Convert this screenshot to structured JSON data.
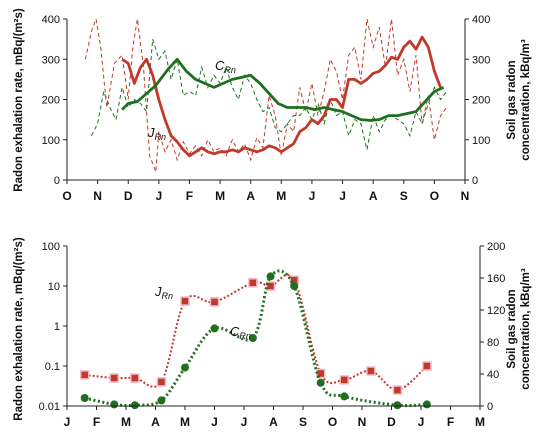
{
  "chart_data": [
    {
      "type": "line",
      "ylabel_left": "Radon exhalation rate, mBq/(m²s)",
      "ylabel_right": [
        "Soil gas radon",
        "concentration, kBq/m³"
      ],
      "ylim_left": [
        0,
        400
      ],
      "ylim_right": [
        0,
        400
      ],
      "yticks_left": [
        "0",
        "100",
        "200",
        "300",
        "400"
      ],
      "yticks_right": [
        "0",
        "100",
        "200",
        "300",
        "400"
      ],
      "months": [
        "O",
        "N",
        "D",
        "J",
        "F",
        "M",
        "A",
        "M",
        "J",
        "J",
        "A",
        "S",
        "O",
        "N"
      ],
      "labels": {
        "j_main": "J",
        "j_sub": "Rn",
        "c_main": "C",
        "c_sub": "Rn"
      },
      "colors": {
        "j": "#c0392b",
        "c": "#1f6f1f"
      },
      "series": [
        {
          "key": "j_raw",
          "style": "dashed",
          "color": "#c0392b",
          "x": [
            0.6,
            0.8,
            0.95,
            1.1,
            1.3,
            1.55,
            1.8,
            2.0,
            2.15,
            2.3,
            2.5,
            2.7,
            2.9,
            3.0,
            3.2,
            3.4,
            3.6,
            3.8,
            4.0,
            4.2,
            4.4,
            4.6,
            4.8,
            5.0,
            5.2,
            5.4,
            5.6,
            5.8,
            6.0,
            6.2,
            6.4,
            6.6,
            6.8,
            7.0,
            7.2,
            7.4,
            7.6,
            7.8,
            8.0,
            8.2,
            8.4,
            8.6,
            8.8,
            9.0,
            9.2,
            9.4,
            9.6,
            9.8,
            10.0,
            10.2,
            10.4,
            10.6,
            10.8,
            11.0,
            11.2,
            11.4,
            11.6,
            11.8,
            12.0,
            12.2,
            12.4
          ],
          "y": [
            300,
            370,
            400,
            330,
            180,
            290,
            310,
            200,
            330,
            400,
            280,
            60,
            20,
            120,
            70,
            100,
            50,
            95,
            65,
            85,
            60,
            100,
            70,
            80,
            60,
            100,
            70,
            90,
            50,
            105,
            80,
            210,
            160,
            60,
            140,
            120,
            230,
            170,
            240,
            160,
            220,
            300,
            270,
            200,
            310,
            330,
            250,
            400,
            330,
            380,
            280,
            400,
            260,
            300,
            220,
            310,
            140,
            210,
            100,
            160,
            180
          ]
        },
        {
          "key": "c_raw",
          "style": "dashed",
          "color": "#1f6f1f",
          "x": [
            0.8,
            1.0,
            1.2,
            1.4,
            1.6,
            1.8,
            2.0,
            2.2,
            2.4,
            2.6,
            2.8,
            3.0,
            3.2,
            3.4,
            3.6,
            3.8,
            4.0,
            4.2,
            4.4,
            4.6,
            4.8,
            5.0,
            5.2,
            5.4,
            5.6,
            5.8,
            6.0,
            6.2,
            6.4,
            6.6,
            6.8,
            7.0,
            7.2,
            7.4,
            7.6,
            7.8,
            8.0,
            8.2,
            8.4,
            8.6,
            8.8,
            9.0,
            9.2,
            9.4,
            9.6,
            9.8,
            10.0,
            10.2,
            10.4,
            10.6,
            10.8,
            11.0,
            11.2,
            11.4,
            11.6,
            11.8,
            12.0,
            12.2,
            12.4
          ],
          "y": [
            110,
            140,
            220,
            180,
            150,
            230,
            180,
            200,
            190,
            170,
            350,
            300,
            320,
            250,
            300,
            210,
            220,
            210,
            280,
            230,
            260,
            240,
            280,
            230,
            200,
            260,
            240,
            200,
            170,
            180,
            130,
            120,
            140,
            160,
            160,
            180,
            150,
            190,
            140,
            200,
            160,
            170,
            110,
            150,
            140,
            75,
            160,
            120,
            150,
            160,
            150,
            140,
            110,
            170,
            140,
            190,
            230,
            200,
            220
          ]
        },
        {
          "key": "j_avg",
          "style": "solid",
          "color": "#c0392b",
          "x": [
            1.8,
            2.0,
            2.2,
            2.4,
            2.6,
            2.8,
            3.0,
            3.2,
            3.4,
            3.6,
            3.8,
            4.0,
            4.2,
            4.4,
            4.6,
            4.8,
            5.0,
            5.2,
            5.4,
            5.6,
            5.8,
            6.0,
            6.2,
            6.4,
            6.6,
            6.8,
            7.0,
            7.2,
            7.4,
            7.6,
            7.8,
            8.0,
            8.2,
            8.4,
            8.6,
            8.8,
            9.0,
            9.2,
            9.4,
            9.6,
            9.8,
            10.0,
            10.2,
            10.4,
            10.6,
            10.8,
            11.0,
            11.2,
            11.4,
            11.6,
            11.8,
            12.0,
            12.2
          ],
          "y": [
            300,
            290,
            240,
            280,
            300,
            260,
            200,
            150,
            110,
            95,
            75,
            60,
            70,
            80,
            70,
            65,
            70,
            70,
            75,
            70,
            80,
            75,
            70,
            75,
            85,
            80,
            70,
            80,
            90,
            120,
            130,
            150,
            140,
            160,
            200,
            200,
            180,
            250,
            250,
            240,
            250,
            265,
            270,
            285,
            305,
            300,
            330,
            345,
            325,
            355,
            330,
            270,
            230
          ]
        },
        {
          "key": "c_avg",
          "style": "solid",
          "color": "#1f6f1f",
          "x": [
            1.8,
            2.0,
            2.3,
            2.6,
            2.9,
            3.1,
            3.3,
            3.6,
            3.9,
            4.2,
            4.5,
            4.8,
            5.1,
            5.4,
            5.7,
            6.0,
            6.3,
            6.6,
            6.9,
            7.2,
            7.5,
            7.8,
            8.1,
            8.4,
            8.7,
            9.0,
            9.3,
            9.6,
            9.9,
            10.2,
            10.5,
            10.8,
            11.1,
            11.4,
            11.7,
            12.0,
            12.3
          ],
          "y": [
            175,
            190,
            195,
            215,
            235,
            255,
            275,
            300,
            270,
            250,
            240,
            230,
            240,
            250,
            255,
            260,
            240,
            215,
            190,
            180,
            180,
            180,
            175,
            180,
            175,
            170,
            160,
            150,
            148,
            150,
            160,
            160,
            165,
            170,
            195,
            220,
            230
          ]
        }
      ]
    },
    {
      "type": "line",
      "yscale": "log",
      "ylabel_left": "Radon exhalation rate, mBq/(m²s)",
      "ylabel_right": [
        "Soil gas radon",
        "concentration, kBq/m³"
      ],
      "ylim_left": [
        0.01,
        100
      ],
      "ylim_right": [
        0,
        200
      ],
      "yticks_left": [
        "0.01",
        "0.1",
        "1",
        "10",
        "100"
      ],
      "yticks_right": [
        "0",
        "40",
        "80",
        "120",
        "160",
        "200"
      ],
      "months": [
        "J",
        "F",
        "M",
        "A",
        "M",
        "J",
        "J",
        "A",
        "S",
        "O",
        "N",
        "D",
        "J",
        "F",
        "M"
      ],
      "labels": {
        "j_main": "J",
        "j_sub": "Rn",
        "c_main": "C",
        "c_sub": "Rn"
      },
      "colors": {
        "j": "#c0392b",
        "c": "#1f6f1f"
      },
      "series": [
        {
          "key": "j",
          "axis": "left",
          "marker": "square",
          "color": "#c0392b",
          "x": [
            0.6,
            1.6,
            2.3,
            3.2,
            4.0,
            5.0,
            6.3,
            6.9,
            7.7,
            8.6,
            9.4,
            10.3,
            11.2,
            12.2
          ],
          "y": [
            0.06,
            0.05,
            0.05,
            0.04,
            4.2,
            4.0,
            12.0,
            10.0,
            14.0,
            0.065,
            0.045,
            0.075,
            0.025,
            0.1
          ]
        },
        {
          "key": "c",
          "axis": "right",
          "marker": "circle",
          "color": "#1f6f1f",
          "x": [
            0.6,
            1.6,
            2.3,
            3.2,
            4.0,
            5.0,
            6.3,
            6.9,
            7.7,
            8.6,
            9.4,
            11.2,
            12.2
          ],
          "y": [
            10,
            2,
            1,
            7,
            48,
            97,
            85,
            162,
            150,
            29,
            12,
            1,
            2
          ]
        }
      ]
    }
  ]
}
